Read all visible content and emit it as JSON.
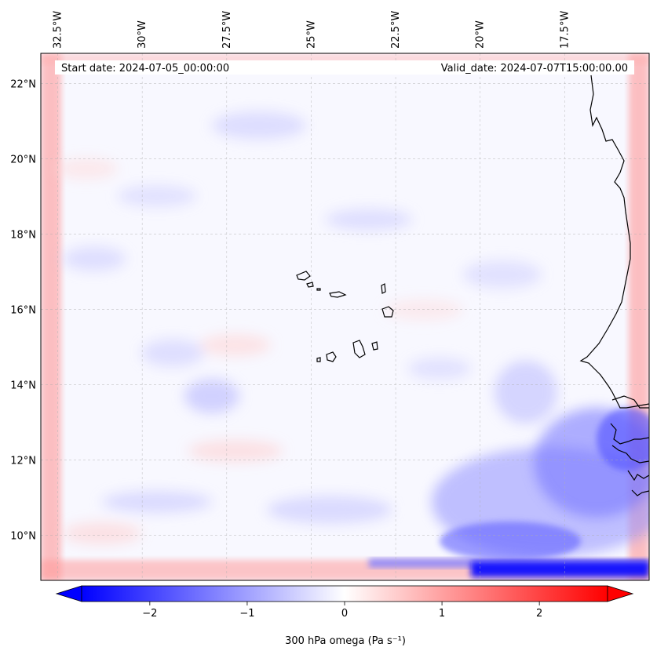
{
  "header": {
    "start_date": "Start date: 2024-07-05_00:00:00",
    "valid_date": "Valid_date: 2024-07-07T15:00:00.00"
  },
  "map": {
    "projection": "lat-lon",
    "lon_range_deg": [
      -33.0,
      -15.0
    ],
    "lat_range_deg": [
      8.8,
      22.8
    ],
    "lon_ticks": [
      {
        "value": -32.5,
        "label": "32.5°W"
      },
      {
        "value": -30.0,
        "label": "30°W"
      },
      {
        "value": -27.5,
        "label": "27.5°W"
      },
      {
        "value": -25.0,
        "label": "25°W"
      },
      {
        "value": -22.5,
        "label": "22.5°W"
      },
      {
        "value": -20.0,
        "label": "20°W"
      },
      {
        "value": -17.5,
        "label": "17.5°W"
      }
    ],
    "lat_ticks": [
      {
        "value": 22,
        "label": "22°N"
      },
      {
        "value": 20,
        "label": "20°N"
      },
      {
        "value": 18,
        "label": "18°N"
      },
      {
        "value": 16,
        "label": "16°N"
      },
      {
        "value": 14,
        "label": "14°N"
      },
      {
        "value": 12,
        "label": "12°N"
      },
      {
        "value": 10,
        "label": "10°N"
      }
    ],
    "gridlines": true,
    "features": [
      "Cape Verde islands",
      "West African coastline (Senegal, Gambia, Guinea-Bissau)"
    ]
  },
  "colorbar": {
    "label": "300 hPa omega (Pa s⁻¹)",
    "range": [
      -2.7,
      2.7
    ],
    "extend": "both",
    "ticks": [
      {
        "value": -2,
        "label": "−2"
      },
      {
        "value": -1,
        "label": "−1"
      },
      {
        "value": 0,
        "label": "0"
      },
      {
        "value": 1,
        "label": "1"
      },
      {
        "value": 2,
        "label": "2"
      }
    ],
    "color_min": "#0000ff",
    "color_mid": "#ffffff",
    "color_max": "#ff0000"
  },
  "field": {
    "variable": "omega",
    "level": "300 hPa",
    "units": "Pa s⁻¹",
    "background_color": "#f8f8ff",
    "boundary_value": 0.9,
    "southeast_strong_ascent_value": -2.5
  }
}
